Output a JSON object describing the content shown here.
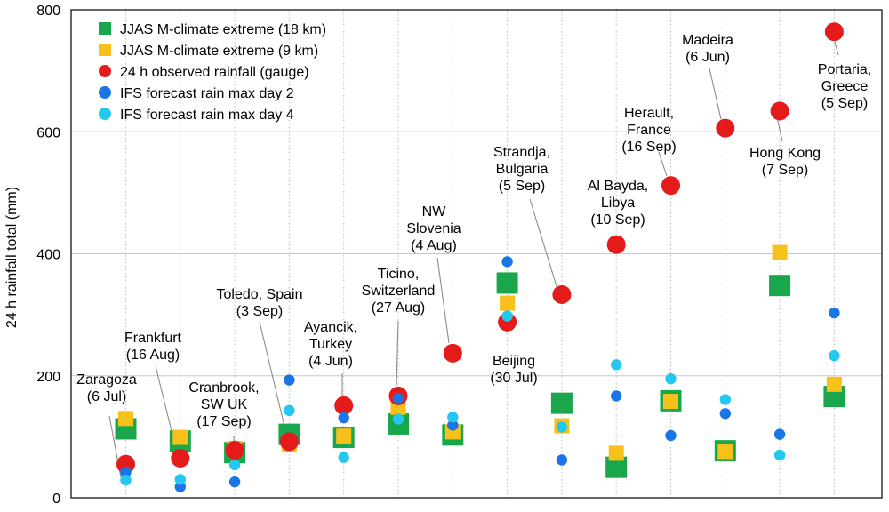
{
  "chart_data": {
    "type": "scatter",
    "ylabel": "24 h rainfall total (mm)",
    "ylim": [
      0,
      800
    ],
    "yticks": [
      0,
      200,
      400,
      600,
      800
    ],
    "grid": true,
    "legend_position": "top-left",
    "n_events": 14,
    "series": [
      {
        "name": "JJAS M-climate extreme (18 km)",
        "marker": "square-large",
        "color": "#1aa64b",
        "values": [
          113,
          93,
          74,
          104,
          99,
          121,
          103,
          352,
          155,
          50,
          159,
          77,
          348,
          166
        ]
      },
      {
        "name": "JJAS M-climate extreme (9 km)",
        "marker": "square-small",
        "color": "#f7c11a",
        "values": [
          130,
          99,
          81,
          88,
          101,
          148,
          108,
          319,
          118,
          73,
          158,
          76,
          402,
          186
        ]
      },
      {
        "name": "24 h observed rainfall (gauge)",
        "marker": "circle-large",
        "color": "#e51a1a",
        "values": [
          55,
          65,
          78,
          92,
          151,
          167,
          237,
          288,
          333,
          415,
          512,
          606,
          634,
          764
        ]
      },
      {
        "name": "IFS forecast rain max day 2",
        "marker": "circle-small",
        "color": "#1a76e6",
        "values": [
          42,
          18,
          26,
          193,
          131,
          163,
          119,
          387,
          62,
          167,
          102,
          138,
          104,
          303
        ]
      },
      {
        "name": "IFS forecast rain max day 4",
        "marker": "circle-small",
        "color": "#22c8ee",
        "values": [
          29,
          30,
          54,
          143,
          66,
          129,
          132,
          298,
          116,
          218,
          195,
          161,
          70,
          233
        ]
      }
    ],
    "annotations": [
      {
        "lines": [
          "Zaragoza",
          "(6 Jul)"
        ],
        "event": 0
      },
      {
        "lines": [
          "Frankfurt",
          "(16 Aug)"
        ],
        "event": 1
      },
      {
        "lines": [
          "Cranbrook,",
          "SW UK",
          "(17 Sep)"
        ],
        "event": 2
      },
      {
        "lines": [
          "Toledo, Spain",
          "(3 Sep)"
        ],
        "event": 3
      },
      {
        "lines": [
          "Ayancik,",
          "Turkey",
          "(4 Jun)"
        ],
        "event": 4
      },
      {
        "lines": [
          "Ticino,",
          "Switzerland",
          "(27 Aug)"
        ],
        "event": 5
      },
      {
        "lines": [
          "NW",
          "Slovenia",
          "(4 Aug)"
        ],
        "event": 6
      },
      {
        "lines": [
          "Beijing",
          "(30 Jul)"
        ],
        "event": 7
      },
      {
        "lines": [
          "Strandja,",
          "Bulgaria",
          "(5 Sep)"
        ],
        "event": 8
      },
      {
        "lines": [
          "Al Bayda,",
          "Libya",
          "(10 Sep)"
        ],
        "event": 9
      },
      {
        "lines": [
          "Herault,",
          "France",
          "(16 Sep)"
        ],
        "event": 10
      },
      {
        "lines": [
          "Madeira",
          "(6 Jun)"
        ],
        "event": 11
      },
      {
        "lines": [
          "Hong Kong",
          "(7 Sep)"
        ],
        "event": 12
      },
      {
        "lines": [
          "Portaria,",
          "Greece",
          "(5 Sep)"
        ],
        "event": 13
      }
    ]
  }
}
